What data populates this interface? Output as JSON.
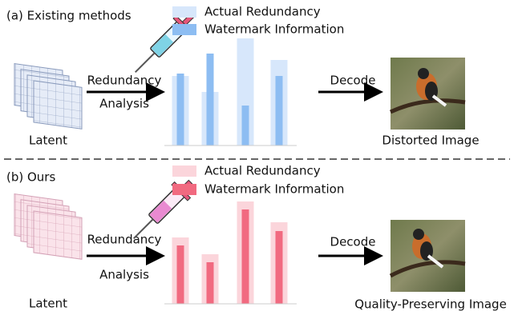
{
  "panels": [
    {
      "label": "(a) Existing methods",
      "latent": "Latent",
      "analysis": [
        "Redundancy",
        "Analysis"
      ],
      "decode": "Decode",
      "output": "Distorted Image"
    },
    {
      "label": "(b) Ours",
      "latent": "Latent",
      "analysis": [
        "Redundancy",
        "Analysis"
      ],
      "decode": "Decode",
      "output": "Quality-Preserving Image"
    }
  ],
  "chart_data": [
    {
      "type": "bar",
      "categories": [
        null,
        null,
        null,
        null
      ],
      "ylim": [
        0,
        140
      ],
      "series": [
        {
          "name": "Actual Redundancy",
          "color": "#d7e7fb",
          "values": [
            87,
            67,
            134,
            107
          ]
        },
        {
          "name": "Watermark Information",
          "color": "#8dbdf2",
          "values": [
            90,
            115,
            50,
            87
          ]
        }
      ]
    },
    {
      "type": "bar",
      "categories": [
        null,
        null,
        null,
        null
      ],
      "ylim": [
        0,
        140
      ],
      "series": [
        {
          "name": "Actual Redundancy",
          "color": "#fbd5db",
          "values": [
            83,
            62,
            128,
            102
          ]
        },
        {
          "name": "Watermark Information",
          "color": "#f16a80",
          "values": [
            73,
            52,
            118,
            91
          ]
        }
      ]
    }
  ]
}
